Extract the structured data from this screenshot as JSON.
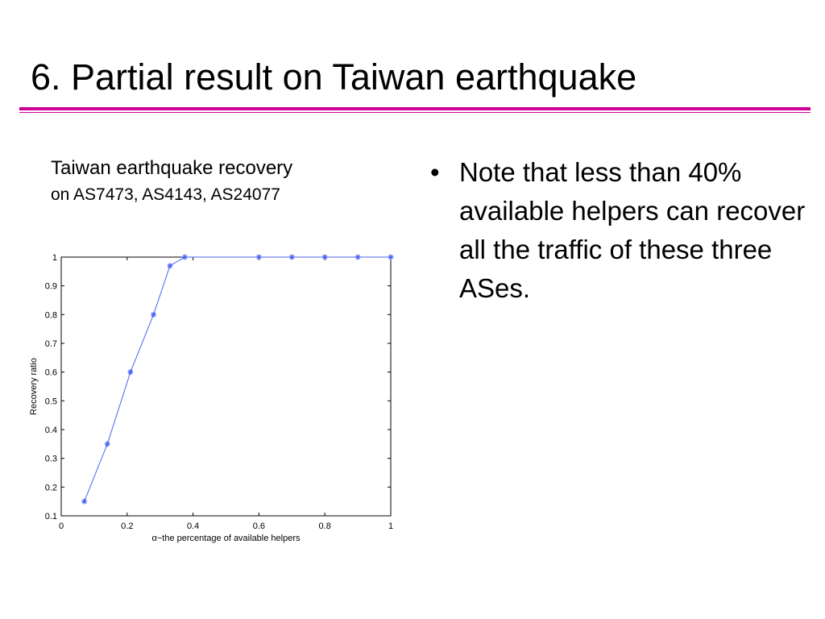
{
  "slide": {
    "title": "6. Partial result on Taiwan earthquake",
    "caption_line1": "Taiwan earthquake recovery",
    "caption_line2": "on AS7473,  AS4143,  AS24077",
    "bullets": [
      {
        "text": "Note that less than 40% available helpers can recover all the traffic of these three ASes."
      }
    ]
  },
  "colors": {
    "accent": "#cc0099",
    "series": "#4a63f5",
    "axis": "#000000"
  },
  "chart_data": {
    "type": "line",
    "title": "",
    "xlabel": "α−the percentage of available helpers",
    "ylabel": "Recovery ratio",
    "xlim": [
      0,
      1
    ],
    "ylim": [
      0.1,
      1
    ],
    "x_ticks": [
      0,
      0.2,
      0.4,
      0.6,
      0.8,
      1
    ],
    "x_tick_labels": [
      "0",
      "0.2",
      "0.4",
      "0.6",
      "0.8",
      "1"
    ],
    "y_ticks": [
      0.1,
      0.2,
      0.3,
      0.4,
      0.5,
      0.6,
      0.7,
      0.8,
      0.9,
      1
    ],
    "y_tick_labels": [
      "0.1",
      "0.2",
      "0.3",
      "0.4",
      "0.5",
      "0.6",
      "0.7",
      "0.8",
      "0.9",
      "1"
    ],
    "grid": false,
    "marker": "asterisk",
    "series": [
      {
        "x": [
          0.07,
          0.14,
          0.21,
          0.28,
          0.33,
          0.375,
          0.6,
          0.7,
          0.8,
          0.9,
          1.0
        ],
        "y": [
          0.15,
          0.35,
          0.6,
          0.8,
          0.97,
          1.0,
          1.0,
          1.0,
          1.0,
          1.0,
          1.0
        ]
      }
    ]
  }
}
